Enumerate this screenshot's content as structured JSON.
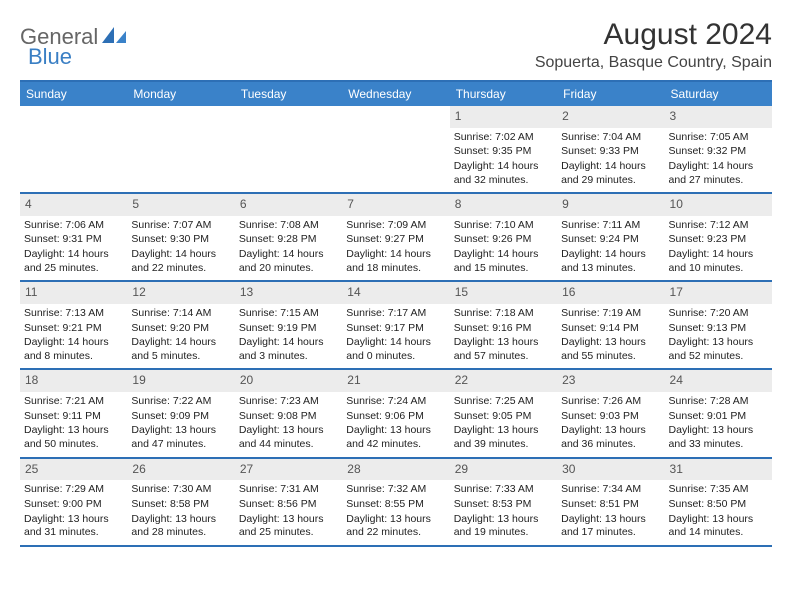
{
  "logo": {
    "text1": "General",
    "text2": "Blue"
  },
  "title": "August 2024",
  "subtitle": "Sopuerta, Basque Country, Spain",
  "colors": {
    "header_bg": "#3a82c9",
    "header_text": "#ffffff",
    "border": "#2d6fb5",
    "daynum_bg": "#ececec",
    "logo_blue": "#3a7fc4",
    "logo_grey": "#666666"
  },
  "weekdays": [
    "Sunday",
    "Monday",
    "Tuesday",
    "Wednesday",
    "Thursday",
    "Friday",
    "Saturday"
  ],
  "weeks": [
    [
      null,
      null,
      null,
      null,
      {
        "n": "1",
        "sr": "7:02 AM",
        "ss": "9:35 PM",
        "dl": "14 hours and 32 minutes."
      },
      {
        "n": "2",
        "sr": "7:04 AM",
        "ss": "9:33 PM",
        "dl": "14 hours and 29 minutes."
      },
      {
        "n": "3",
        "sr": "7:05 AM",
        "ss": "9:32 PM",
        "dl": "14 hours and 27 minutes."
      }
    ],
    [
      {
        "n": "4",
        "sr": "7:06 AM",
        "ss": "9:31 PM",
        "dl": "14 hours and 25 minutes."
      },
      {
        "n": "5",
        "sr": "7:07 AM",
        "ss": "9:30 PM",
        "dl": "14 hours and 22 minutes."
      },
      {
        "n": "6",
        "sr": "7:08 AM",
        "ss": "9:28 PM",
        "dl": "14 hours and 20 minutes."
      },
      {
        "n": "7",
        "sr": "7:09 AM",
        "ss": "9:27 PM",
        "dl": "14 hours and 18 minutes."
      },
      {
        "n": "8",
        "sr": "7:10 AM",
        "ss": "9:26 PM",
        "dl": "14 hours and 15 minutes."
      },
      {
        "n": "9",
        "sr": "7:11 AM",
        "ss": "9:24 PM",
        "dl": "14 hours and 13 minutes."
      },
      {
        "n": "10",
        "sr": "7:12 AM",
        "ss": "9:23 PM",
        "dl": "14 hours and 10 minutes."
      }
    ],
    [
      {
        "n": "11",
        "sr": "7:13 AM",
        "ss": "9:21 PM",
        "dl": "14 hours and 8 minutes."
      },
      {
        "n": "12",
        "sr": "7:14 AM",
        "ss": "9:20 PM",
        "dl": "14 hours and 5 minutes."
      },
      {
        "n": "13",
        "sr": "7:15 AM",
        "ss": "9:19 PM",
        "dl": "14 hours and 3 minutes."
      },
      {
        "n": "14",
        "sr": "7:17 AM",
        "ss": "9:17 PM",
        "dl": "14 hours and 0 minutes."
      },
      {
        "n": "15",
        "sr": "7:18 AM",
        "ss": "9:16 PM",
        "dl": "13 hours and 57 minutes."
      },
      {
        "n": "16",
        "sr": "7:19 AM",
        "ss": "9:14 PM",
        "dl": "13 hours and 55 minutes."
      },
      {
        "n": "17",
        "sr": "7:20 AM",
        "ss": "9:13 PM",
        "dl": "13 hours and 52 minutes."
      }
    ],
    [
      {
        "n": "18",
        "sr": "7:21 AM",
        "ss": "9:11 PM",
        "dl": "13 hours and 50 minutes."
      },
      {
        "n": "19",
        "sr": "7:22 AM",
        "ss": "9:09 PM",
        "dl": "13 hours and 47 minutes."
      },
      {
        "n": "20",
        "sr": "7:23 AM",
        "ss": "9:08 PM",
        "dl": "13 hours and 44 minutes."
      },
      {
        "n": "21",
        "sr": "7:24 AM",
        "ss": "9:06 PM",
        "dl": "13 hours and 42 minutes."
      },
      {
        "n": "22",
        "sr": "7:25 AM",
        "ss": "9:05 PM",
        "dl": "13 hours and 39 minutes."
      },
      {
        "n": "23",
        "sr": "7:26 AM",
        "ss": "9:03 PM",
        "dl": "13 hours and 36 minutes."
      },
      {
        "n": "24",
        "sr": "7:28 AM",
        "ss": "9:01 PM",
        "dl": "13 hours and 33 minutes."
      }
    ],
    [
      {
        "n": "25",
        "sr": "7:29 AM",
        "ss": "9:00 PM",
        "dl": "13 hours and 31 minutes."
      },
      {
        "n": "26",
        "sr": "7:30 AM",
        "ss": "8:58 PM",
        "dl": "13 hours and 28 minutes."
      },
      {
        "n": "27",
        "sr": "7:31 AM",
        "ss": "8:56 PM",
        "dl": "13 hours and 25 minutes."
      },
      {
        "n": "28",
        "sr": "7:32 AM",
        "ss": "8:55 PM",
        "dl": "13 hours and 22 minutes."
      },
      {
        "n": "29",
        "sr": "7:33 AM",
        "ss": "8:53 PM",
        "dl": "13 hours and 19 minutes."
      },
      {
        "n": "30",
        "sr": "7:34 AM",
        "ss": "8:51 PM",
        "dl": "13 hours and 17 minutes."
      },
      {
        "n": "31",
        "sr": "7:35 AM",
        "ss": "8:50 PM",
        "dl": "13 hours and 14 minutes."
      }
    ]
  ],
  "labels": {
    "sunrise": "Sunrise:",
    "sunset": "Sunset:",
    "daylight": "Daylight:"
  }
}
